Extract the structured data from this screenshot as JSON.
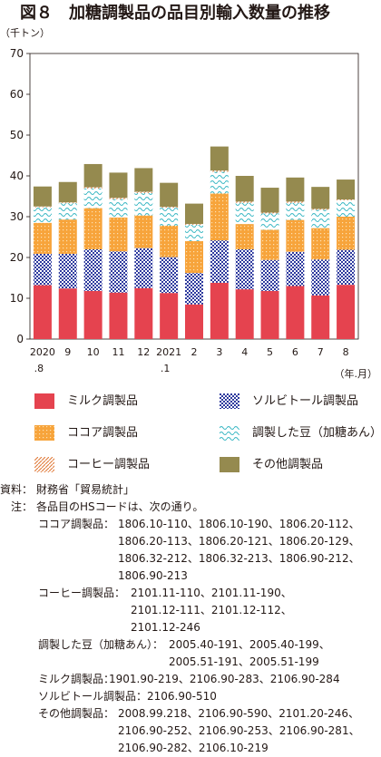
{
  "title": "図８　加糖調製品の品目別輸入数量の推移",
  "chart_data": {
    "type": "bar",
    "stacked": true,
    "unit_label": "（千トン）",
    "x_unit_label": "（年.月）",
    "ylim": [
      0,
      70
    ],
    "yticks": [
      0,
      10,
      20,
      30,
      40,
      50,
      60,
      70
    ],
    "grid": false,
    "legend_position": "bottom",
    "categories": [
      {
        "line1": "2020",
        "line2": ".8"
      },
      {
        "line1": "9",
        "line2": ""
      },
      {
        "line1": "10",
        "line2": ""
      },
      {
        "line1": "11",
        "line2": ""
      },
      {
        "line1": "12",
        "line2": ""
      },
      {
        "line1": "2021",
        "line2": ".1"
      },
      {
        "line1": "2",
        "line2": ""
      },
      {
        "line1": "3",
        "line2": ""
      },
      {
        "line1": "4",
        "line2": ""
      },
      {
        "line1": "5",
        "line2": ""
      },
      {
        "line1": "6",
        "line2": ""
      },
      {
        "line1": "7",
        "line2": ""
      },
      {
        "line1": "8",
        "line2": ""
      }
    ],
    "series": [
      {
        "name": "ミルク調製品",
        "color": "#e5434f",
        "pattern": "solid",
        "values": [
          13.2,
          12.4,
          11.8,
          11.4,
          12.5,
          11.3,
          8.5,
          13.8,
          12.2,
          11.8,
          13.0,
          10.7,
          13.3
        ]
      },
      {
        "name": "ソルビトール調製品",
        "color": "#2e3a9e",
        "pattern": "dots",
        "values": [
          7.7,
          8.5,
          10.2,
          10.1,
          9.8,
          8.8,
          7.7,
          10.4,
          9.8,
          7.6,
          8.4,
          8.8,
          8.6
        ]
      },
      {
        "name": "ココア調製品",
        "color": "#f7a43b",
        "pattern": "cocoa",
        "values": [
          7.6,
          8.4,
          10.1,
          8.3,
          8.0,
          7.7,
          7.8,
          11.5,
          6.2,
          7.4,
          7.8,
          7.7,
          8.1
        ]
      },
      {
        "name": "調製した豆（加糖あん）",
        "color": "#3bb8c4",
        "pattern": "wave",
        "values": [
          3.8,
          4.0,
          4.8,
          4.5,
          5.5,
          4.4,
          4.0,
          5.3,
          5.2,
          4.0,
          4.2,
          4.5,
          4.0
        ]
      },
      {
        "name": "コーヒー調製品",
        "color": "#e07b3a",
        "pattern": "diag",
        "values": [
          0.2,
          0.2,
          0.3,
          0.3,
          0.3,
          0.2,
          0.2,
          0.3,
          0.3,
          0.2,
          0.3,
          0.2,
          0.2
        ]
      },
      {
        "name": "その他調製品",
        "color": "#958a4f",
        "pattern": "solid",
        "values": [
          4.9,
          5.0,
          5.7,
          6.2,
          5.8,
          5.9,
          5.0,
          5.9,
          6.3,
          6.1,
          5.9,
          5.4,
          4.9
        ]
      }
    ]
  },
  "notes": {
    "source_label": "資料：",
    "source_text": "財務省「貿易統計」",
    "note_label": "注：",
    "note_intro": "各品目のHSコードは、次の通り。",
    "cocoa_label": "ココア調製品：",
    "cocoa_lines": [
      "1806.10-110、1806.10-190、1806.20-112、",
      "1806.20-113、1806.20-121、1806.20-129、",
      "1806.32-212、1806.32-213、1806.90-212、",
      "1806.90-213"
    ],
    "coffee_label": "コーヒー調製品：",
    "coffee_lines": [
      "2101.11-110、2101.11-190、",
      "2101.12-111、2101.12-112、",
      "2101.12-246"
    ],
    "beans_label": "調製した豆（加糖あん）：",
    "beans_lines": [
      "2005.40-191、2005.40-199、",
      "2005.51-191、2005.51-199"
    ],
    "milk_label": "ミルク調製品：",
    "milk_text": "1901.90-219、2106.90-283、2106.90-284",
    "sorbitol_label": "ソルビトール調製品：",
    "sorbitol_text": "2106.90-510",
    "other_label": "その他調製品：",
    "other_lines": [
      "2008.99.218、2106.90-590、2101.20-246、",
      "2106.90-252、2106.90-253、2106.90-281、",
      "2106.90-282、2106.10-219"
    ]
  }
}
